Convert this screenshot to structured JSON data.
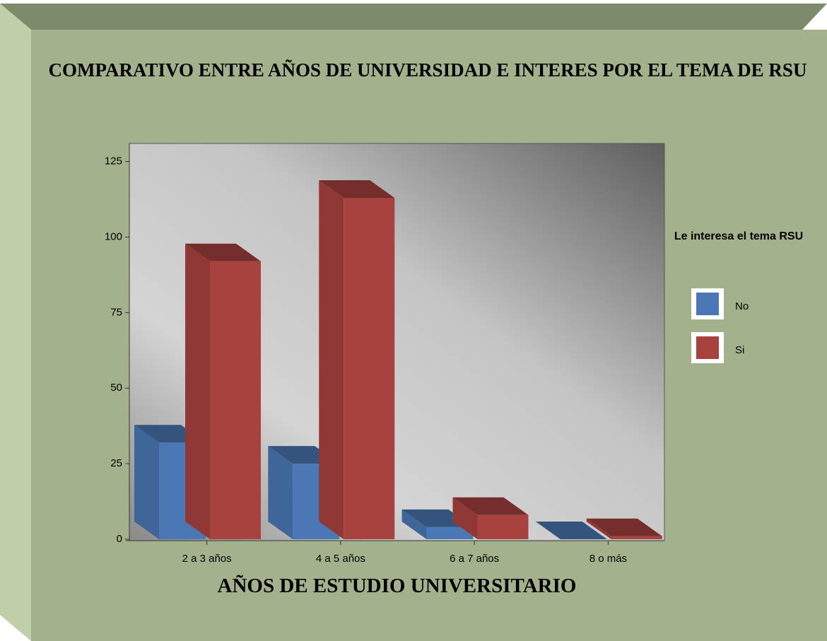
{
  "chart_data": {
    "type": "bar3d",
    "title": "COMPARATIVO ENTRE AÑOS DE UNIVERSIDAD E INTERES POR EL TEMA DE RSU",
    "x_label": "AÑOS DE ESTUDIO UNIVERSITARIO",
    "legend_title": "Le interesa el tema RSU",
    "legend": "right",
    "categories": [
      "2 a 3 años",
      "4 a 5 años",
      "6 a 7 años",
      "8 o más"
    ],
    "series": [
      {
        "name": "No",
        "color": "#4a78b4",
        "values": [
          32,
          25,
          4,
          0
        ]
      },
      {
        "name": "Si",
        "color": "#a8423f",
        "values": [
          92,
          113,
          8,
          1
        ]
      }
    ],
    "ylim": [
      0,
      131
    ],
    "yticks": [
      0,
      25,
      50,
      75,
      100,
      125
    ]
  }
}
